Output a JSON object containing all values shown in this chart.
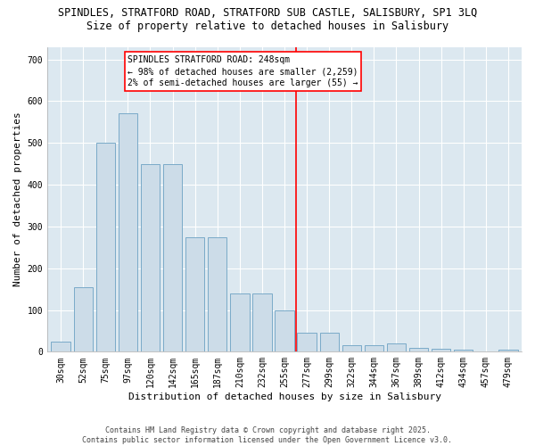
{
  "title_line1": "SPINDLES, STRATFORD ROAD, STRATFORD SUB CASTLE, SALISBURY, SP1 3LQ",
  "title_line2": "Size of property relative to detached houses in Salisbury",
  "xlabel": "Distribution of detached houses by size in Salisbury",
  "ylabel": "Number of detached properties",
  "categories": [
    "30sqm",
    "52sqm",
    "75sqm",
    "97sqm",
    "120sqm",
    "142sqm",
    "165sqm",
    "187sqm",
    "210sqm",
    "232sqm",
    "255sqm",
    "277sqm",
    "299sqm",
    "322sqm",
    "344sqm",
    "367sqm",
    "389sqm",
    "412sqm",
    "434sqm",
    "457sqm",
    "479sqm"
  ],
  "values": [
    25,
    155,
    500,
    570,
    450,
    450,
    275,
    275,
    140,
    140,
    100,
    45,
    45,
    15,
    15,
    20,
    10,
    8,
    5,
    0,
    5
  ],
  "bar_color": "#ccdce8",
  "bar_edge_color": "#7aaac8",
  "vline_x": 10.5,
  "vline_color": "red",
  "annotation_text": "SPINDLES STRATFORD ROAD: 248sqm\n← 98% of detached houses are smaller (2,259)\n2% of semi-detached houses are larger (55) →",
  "annotation_box_color": "white",
  "annotation_box_edge_color": "red",
  "ylim": [
    0,
    730
  ],
  "yticks": [
    0,
    100,
    200,
    300,
    400,
    500,
    600,
    700
  ],
  "footer_text": "Contains HM Land Registry data © Crown copyright and database right 2025.\nContains public sector information licensed under the Open Government Licence v3.0.",
  "fig_bg_color": "#ffffff",
  "plot_bg_color": "#dce8f0",
  "grid_color": "#ffffff",
  "title_fontsize": 8.5,
  "subtitle_fontsize": 8.5,
  "axis_label_fontsize": 8,
  "tick_fontsize": 7,
  "annotation_fontsize": 7,
  "footer_fontsize": 6
}
